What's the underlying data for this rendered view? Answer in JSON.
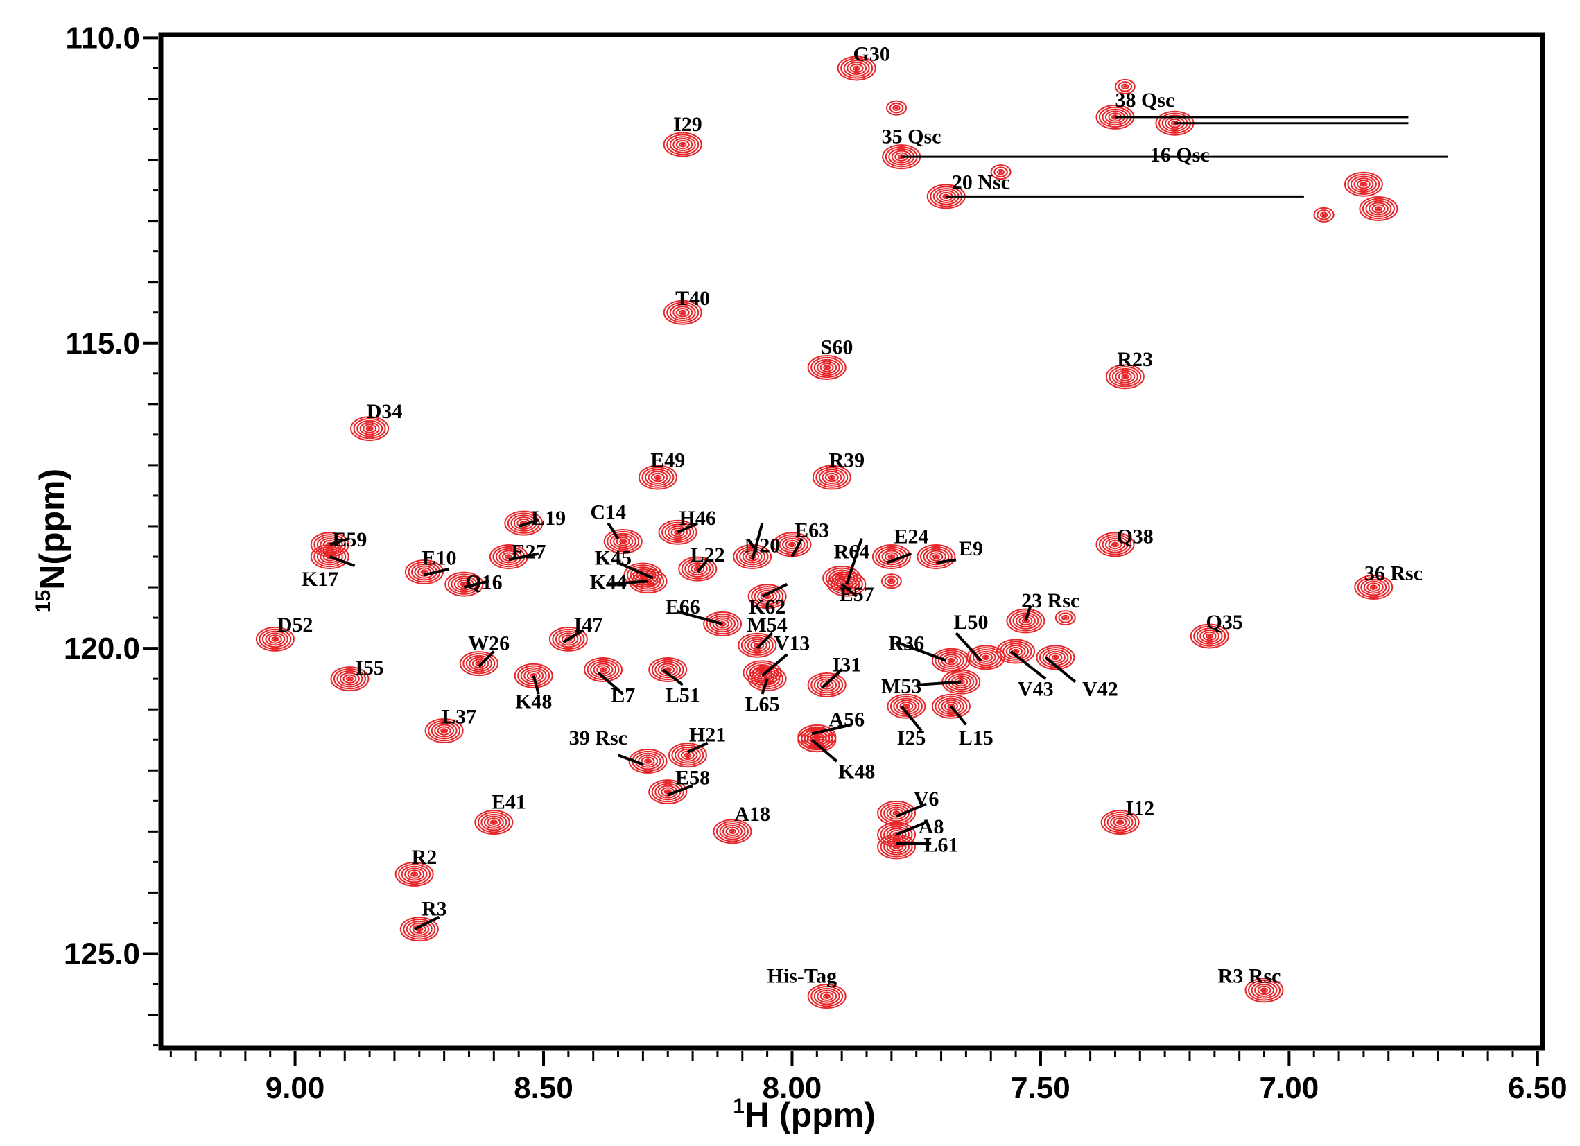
{
  "chart_data": {
    "type": "scatter",
    "subtype": "2D 1H-15N HSQC NMR contour spectrum",
    "xlabel_sup": "1",
    "xlabel_main": "H (ppm)",
    "ylabel_sup": "15",
    "ylabel_main": "N(ppm)",
    "xlim": [
      9.27,
      6.49
    ],
    "ylim": [
      109.95,
      126.55
    ],
    "x_ticks": [
      "9.00",
      "8.50",
      "8.00",
      "7.50",
      "7.00",
      "6.50"
    ],
    "x_tick_values": [
      9.0,
      8.5,
      8.0,
      7.5,
      7.0,
      6.5
    ],
    "y_ticks": [
      "110.0",
      "115.0",
      "120.0",
      "125.0"
    ],
    "y_tick_values": [
      110.0,
      115.0,
      120.0,
      125.0
    ],
    "contour_color": "#e8262a",
    "line_color": "#000000",
    "peaks": [
      {
        "label": "G30",
        "h": 7.87,
        "n": 110.5,
        "lh": 7.84,
        "ln": 110.3
      },
      {
        "label": "I29",
        "h": 8.22,
        "n": 111.75,
        "lh": 8.21,
        "ln": 111.45
      },
      {
        "label": "38 Qsc",
        "h": 7.35,
        "n": 111.3,
        "lh": 7.29,
        "ln": 111.05
      },
      {
        "label": "16 Qsc",
        "h": 7.23,
        "n": 111.4,
        "lh": 7.22,
        "ln": 111.95
      },
      {
        "label": "35 Qsc",
        "h": 7.78,
        "n": 111.95,
        "lh": 7.76,
        "ln": 111.65
      },
      {
        "label": "20 Nsc",
        "h": 7.69,
        "n": 112.6,
        "lh": 7.62,
        "ln": 112.4
      },
      {
        "label": "T40",
        "h": 8.22,
        "n": 114.5,
        "lh": 8.2,
        "ln": 114.3
      },
      {
        "label": "S60",
        "h": 7.93,
        "n": 115.4,
        "lh": 7.91,
        "ln": 115.1
      },
      {
        "label": "R23",
        "h": 7.33,
        "n": 115.55,
        "lh": 7.31,
        "ln": 115.3
      },
      {
        "label": "D34",
        "h": 8.85,
        "n": 116.4,
        "lh": 8.82,
        "ln": 116.15
      },
      {
        "label": "E49",
        "h": 8.27,
        "n": 117.2,
        "lh": 8.25,
        "ln": 116.95
      },
      {
        "label": "R39",
        "h": 7.92,
        "n": 117.2,
        "lh": 7.89,
        "ln": 116.95
      },
      {
        "label": "L19",
        "h": 8.54,
        "n": 117.95,
        "lh": 8.49,
        "ln": 117.9
      },
      {
        "label": "C14",
        "h": 8.34,
        "n": 118.25,
        "lh": 8.37,
        "ln": 117.8
      },
      {
        "label": "H46",
        "h": 8.23,
        "n": 118.1,
        "lh": 8.19,
        "ln": 117.9
      },
      {
        "label": "E59",
        "h": 8.93,
        "n": 118.3,
        "lh": 8.89,
        "ln": 118.25
      },
      {
        "label": "K17",
        "h": 8.93,
        "n": 118.5,
        "lh": 8.95,
        "ln": 118.9
      },
      {
        "label": "N20",
        "h": 8.08,
        "n": 118.5,
        "lh": 8.06,
        "ln": 118.35
      },
      {
        "label": "E63",
        "h": 8.0,
        "n": 118.3,
        "lh": 7.96,
        "ln": 118.1
      },
      {
        "label": "R64",
        "h": 7.9,
        "n": 118.85,
        "lh": 7.88,
        "ln": 118.45
      },
      {
        "label": "E24",
        "h": 7.8,
        "n": 118.5,
        "lh": 7.76,
        "ln": 118.2
      },
      {
        "label": "E9",
        "h": 7.71,
        "n": 118.5,
        "lh": 7.64,
        "ln": 118.4
      },
      {
        "label": "Q38",
        "h": 7.35,
        "n": 118.3,
        "lh": 7.31,
        "ln": 118.2
      },
      {
        "label": "E27",
        "h": 8.57,
        "n": 118.5,
        "lh": 8.53,
        "ln": 118.45
      },
      {
        "label": "E10",
        "h": 8.74,
        "n": 118.75,
        "lh": 8.71,
        "ln": 118.55
      },
      {
        "label": "Q16",
        "h": 8.66,
        "n": 118.95,
        "lh": 8.62,
        "ln": 118.95
      },
      {
        "label": "K45",
        "h": 8.3,
        "n": 118.8,
        "lh": 8.36,
        "ln": 118.55
      },
      {
        "label": "L22",
        "h": 8.19,
        "n": 118.7,
        "lh": 8.17,
        "ln": 118.5
      },
      {
        "label": "K44",
        "h": 8.29,
        "n": 118.9,
        "lh": 8.37,
        "ln": 118.95
      },
      {
        "label": "E57",
        "h": 7.89,
        "n": 118.95,
        "lh": 7.87,
        "ln": 119.15
      },
      {
        "label": "E66",
        "h": 8.14,
        "n": 119.6,
        "lh": 8.22,
        "ln": 119.35
      },
      {
        "label": "K62",
        "h": 8.05,
        "n": 119.15,
        "lh": 8.05,
        "ln": 119.35
      },
      {
        "label": "M54",
        "h": 8.07,
        "n": 119.95,
        "lh": 8.05,
        "ln": 119.65
      },
      {
        "label": "23 Rsc",
        "h": 7.53,
        "n": 119.55,
        "lh": 7.48,
        "ln": 119.25
      },
      {
        "label": "36 Rsc",
        "h": 6.83,
        "n": 119.0,
        "lh": 6.79,
        "ln": 118.8
      },
      {
        "label": "D52",
        "h": 9.04,
        "n": 119.85,
        "lh": 9.0,
        "ln": 119.65
      },
      {
        "label": "I47",
        "h": 8.45,
        "n": 119.85,
        "lh": 8.41,
        "ln": 119.65
      },
      {
        "label": "W26",
        "h": 8.63,
        "n": 120.25,
        "lh": 8.61,
        "ln": 119.95
      },
      {
        "label": "V13",
        "h": 8.06,
        "n": 120.4,
        "lh": 8.0,
        "ln": 119.95
      },
      {
        "label": "L50",
        "h": 7.61,
        "n": 120.15,
        "lh": 7.64,
        "ln": 119.6
      },
      {
        "label": "R36",
        "h": 7.68,
        "n": 120.2,
        "lh": 7.77,
        "ln": 119.95
      },
      {
        "label": "Q35",
        "h": 7.16,
        "n": 119.8,
        "lh": 7.13,
        "ln": 119.6
      },
      {
        "label": "I55",
        "h": 8.89,
        "n": 120.5,
        "lh": 8.85,
        "ln": 120.35
      },
      {
        "label": "L7",
        "h": 8.38,
        "n": 120.35,
        "lh": 8.34,
        "ln": 120.8
      },
      {
        "label": "L51",
        "h": 8.25,
        "n": 120.35,
        "lh": 8.22,
        "ln": 120.8
      },
      {
        "label": "I31",
        "h": 7.93,
        "n": 120.6,
        "lh": 7.89,
        "ln": 120.3
      },
      {
        "label": "K48",
        "h": 8.52,
        "n": 120.45,
        "lh": 8.52,
        "ln": 120.9
      },
      {
        "label": "L65",
        "h": 8.05,
        "n": 120.5,
        "lh": 8.06,
        "ln": 120.95
      },
      {
        "label": "M53",
        "h": 7.66,
        "n": 120.55,
        "lh": 7.78,
        "ln": 120.65
      },
      {
        "label": "V43",
        "h": 7.55,
        "n": 120.05,
        "lh": 7.51,
        "ln": 120.7
      },
      {
        "label": "V42",
        "h": 7.47,
        "n": 120.15,
        "lh": 7.38,
        "ln": 120.7
      },
      {
        "label": "I25",
        "h": 7.77,
        "n": 120.95,
        "lh": 7.76,
        "ln": 121.5
      },
      {
        "label": "L15",
        "h": 7.68,
        "n": 120.95,
        "lh": 7.63,
        "ln": 121.5
      },
      {
        "label": "L37",
        "h": 8.7,
        "n": 121.35,
        "lh": 8.67,
        "ln": 121.15
      },
      {
        "label": "A56",
        "h": 7.95,
        "n": 121.45,
        "lh": 7.89,
        "ln": 121.2
      },
      {
        "label": "K48",
        "h": 7.95,
        "n": 121.5,
        "lh": 7.87,
        "ln": 122.05
      },
      {
        "label": "39 Rsc",
        "h": 8.29,
        "n": 121.85,
        "lh": 8.39,
        "ln": 121.5
      },
      {
        "label": "H21",
        "h": 8.21,
        "n": 121.75,
        "lh": 8.17,
        "ln": 121.45
      },
      {
        "label": "E58",
        "h": 8.25,
        "n": 122.35,
        "lh": 8.2,
        "ln": 122.15
      },
      {
        "label": "E41",
        "h": 8.6,
        "n": 122.85,
        "lh": 8.57,
        "ln": 122.55
      },
      {
        "label": "A18",
        "h": 8.12,
        "n": 123.0,
        "lh": 8.08,
        "ln": 122.75
      },
      {
        "label": "V6",
        "h": 7.79,
        "n": 122.7,
        "lh": 7.73,
        "ln": 122.5
      },
      {
        "label": "A8",
        "h": 7.79,
        "n": 123.05,
        "lh": 7.72,
        "ln": 122.95
      },
      {
        "label": "L61",
        "h": 7.79,
        "n": 123.25,
        "lh": 7.7,
        "ln": 123.25
      },
      {
        "label": "I12",
        "h": 7.34,
        "n": 122.85,
        "lh": 7.3,
        "ln": 122.65
      },
      {
        "label": "R2",
        "h": 8.76,
        "n": 123.7,
        "lh": 8.74,
        "ln": 123.45
      },
      {
        "label": "R3",
        "h": 8.75,
        "n": 124.6,
        "lh": 8.72,
        "ln": 124.3
      },
      {
        "label": "His-Tag",
        "h": 7.93,
        "n": 125.7,
        "lh": 7.98,
        "ln": 125.4
      },
      {
        "label": "R3 Rsc",
        "h": 7.05,
        "n": 125.6,
        "lh": 7.08,
        "ln": 125.4
      }
    ],
    "extra_peaks": [
      {
        "h": 7.79,
        "n": 111.15,
        "small": true
      },
      {
        "h": 7.58,
        "n": 112.2,
        "small": true
      },
      {
        "h": 6.85,
        "n": 112.4,
        "small": false
      },
      {
        "h": 6.82,
        "n": 112.8,
        "small": false
      },
      {
        "h": 6.93,
        "n": 112.9,
        "small": true
      },
      {
        "h": 7.33,
        "n": 110.8,
        "small": true
      },
      {
        "h": 7.8,
        "n": 118.9,
        "small": true
      },
      {
        "h": 7.45,
        "n": 119.5,
        "small": true
      }
    ],
    "sidechain_lines": [
      {
        "from": 7.35,
        "to": 6.76,
        "n": 111.3
      },
      {
        "from": 7.23,
        "to": 6.76,
        "n": 111.4
      },
      {
        "from": 7.78,
        "to": 6.68,
        "n": 111.95
      },
      {
        "from": 7.69,
        "to": 6.97,
        "n": 112.6
      }
    ],
    "leaders": [
      [
        8.55,
        118.0,
        8.51,
        117.9
      ],
      [
        8.35,
        118.2,
        8.37,
        117.95
      ],
      [
        8.23,
        118.1,
        8.19,
        117.95
      ],
      [
        8.93,
        118.3,
        8.89,
        118.2
      ],
      [
        8.93,
        118.5,
        8.88,
        118.65
      ],
      [
        8.08,
        118.55,
        8.06,
        117.95
      ],
      [
        8.0,
        118.5,
        7.98,
        118.2
      ],
      [
        7.89,
        118.95,
        7.86,
        118.2
      ],
      [
        7.81,
        118.6,
        7.76,
        118.45
      ],
      [
        7.71,
        118.6,
        7.67,
        118.55
      ],
      [
        8.57,
        118.55,
        8.51,
        118.45
      ],
      [
        8.74,
        118.8,
        8.69,
        118.7
      ],
      [
        8.66,
        119.0,
        8.61,
        118.9
      ],
      [
        8.28,
        118.85,
        8.35,
        118.6
      ],
      [
        8.19,
        118.75,
        8.17,
        118.55
      ],
      [
        8.29,
        118.9,
        8.37,
        118.95
      ],
      [
        7.9,
        118.95,
        7.87,
        119.15
      ],
      [
        8.14,
        119.6,
        8.23,
        119.4
      ],
      [
        8.06,
        119.15,
        8.01,
        118.95
      ],
      [
        8.07,
        120.0,
        8.04,
        119.75
      ],
      [
        7.53,
        119.55,
        7.52,
        119.3
      ],
      [
        8.46,
        119.9,
        8.42,
        119.7
      ],
      [
        8.63,
        120.3,
        8.6,
        120.05
      ],
      [
        8.06,
        120.45,
        8.01,
        120.1
      ],
      [
        7.62,
        120.2,
        7.67,
        119.75
      ],
      [
        7.69,
        120.2,
        7.79,
        119.9
      ],
      [
        8.39,
        120.4,
        8.34,
        120.75
      ],
      [
        8.26,
        120.35,
        8.22,
        120.6
      ],
      [
        7.94,
        120.65,
        7.9,
        120.35
      ],
      [
        8.52,
        120.45,
        8.51,
        120.75
      ],
      [
        8.05,
        120.5,
        8.06,
        120.75
      ],
      [
        7.66,
        120.55,
        7.75,
        120.6
      ],
      [
        7.56,
        120.05,
        7.49,
        120.5
      ],
      [
        7.49,
        120.15,
        7.43,
        120.55
      ],
      [
        7.78,
        120.95,
        7.74,
        121.35
      ],
      [
        7.68,
        120.95,
        7.65,
        121.25
      ],
      [
        7.96,
        121.4,
        7.88,
        121.25
      ],
      [
        7.96,
        121.5,
        7.91,
        121.85
      ],
      [
        8.3,
        121.9,
        8.35,
        121.75
      ],
      [
        8.21,
        121.7,
        8.17,
        121.55
      ],
      [
        8.25,
        122.4,
        8.2,
        122.25
      ],
      [
        7.79,
        122.75,
        7.73,
        122.55
      ],
      [
        7.79,
        123.05,
        7.73,
        122.85
      ],
      [
        7.79,
        123.2,
        7.72,
        123.2
      ],
      [
        8.76,
        124.6,
        8.71,
        124.4
      ]
    ]
  }
}
